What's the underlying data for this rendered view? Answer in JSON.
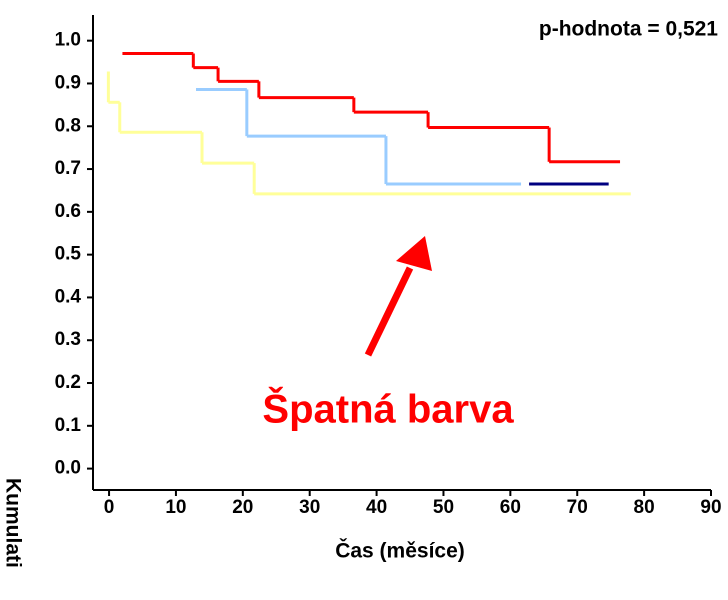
{
  "chart_data": {
    "type": "step",
    "xlabel": "Čas (měsíce)",
    "ylabel": "Kumulati",
    "annotations": [
      "p-hodnota = 0,521",
      "Špatná barva"
    ],
    "xlim": [
      -2.4,
      90
    ],
    "ylim": [
      -0.05,
      1.06
    ],
    "xticks": [
      0,
      10,
      20,
      30,
      40,
      50,
      60,
      70,
      80,
      90
    ],
    "yticks": [
      {
        "value": 0,
        "label": "0.0"
      },
      0.1,
      0.2,
      0.3,
      0.4,
      0.5,
      0.6,
      0.7,
      0.8,
      0.9,
      {
        "value": 1,
        "label": "1.0"
      }
    ],
    "series": [
      {
        "color": "#ff0000",
        "x": [
          2,
          12.6,
          16.3,
          22.4,
          36.6,
          47.7,
          65.8,
          76.4
        ],
        "values": [
          0.97,
          0.937,
          0.905,
          0.867,
          0.833,
          0.797,
          0.717,
          0.717
        ]
      },
      {
        "color": "#99ccff",
        "x": [
          13,
          20.6,
          41.4,
          61.6
        ],
        "values": [
          0.886,
          0.777,
          0.665,
          0.665
        ]
      },
      {
        "color": "#000080",
        "x": [
          62.8,
          74.7
        ],
        "values": [
          0.665,
          0.665
        ]
      },
      {
        "color": "#ffff99",
        "x": [
          -0.1,
          -0.1,
          1.6,
          13.9,
          21.7,
          78
        ],
        "values": [
          0.928,
          0.856,
          0.786,
          0.714,
          0.642,
          0.642
        ]
      }
    ]
  }
}
